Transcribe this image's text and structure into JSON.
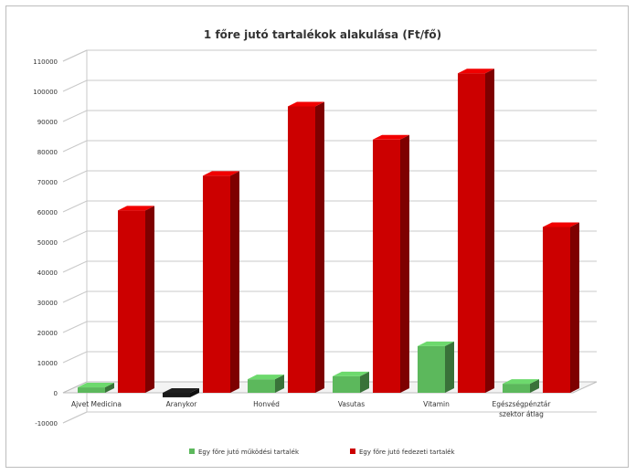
{
  "chart_data": {
    "type": "bar",
    "title": "1 főre jutó tartalékok alakulása (Ft/fő)",
    "categories": [
      "Ajvet Medicina",
      "Aranykor",
      "Honvéd",
      "Vasutas",
      "Vitamin",
      "Egészségpénztár szektor átlag"
    ],
    "category_lines": [
      [
        "Ajvet Medicina"
      ],
      [
        "Aranykor"
      ],
      [
        "Honvéd"
      ],
      [
        "Vasutas"
      ],
      [
        "Vitamin"
      ],
      [
        "Egészségpénztár",
        "szektor átlag"
      ]
    ],
    "series": [
      {
        "name": "Egy főre jutó működési tartalék",
        "color": "#5cb85c",
        "values": [
          1800,
          -1500,
          4500,
          5500,
          15500,
          3000
        ]
      },
      {
        "name": "Egy főre jutó fedezeti tartalék",
        "color": "#cc0000",
        "values": [
          60500,
          72000,
          95000,
          84000,
          106000,
          55000
        ]
      }
    ],
    "ylim": [
      -10000,
      110000
    ],
    "yticks": [
      -10000,
      0,
      10000,
      20000,
      30000,
      40000,
      50000,
      60000,
      70000,
      80000,
      90000,
      100000,
      110000
    ],
    "grid": true,
    "legend_position": "bottom",
    "xlabel": "",
    "ylabel": ""
  }
}
